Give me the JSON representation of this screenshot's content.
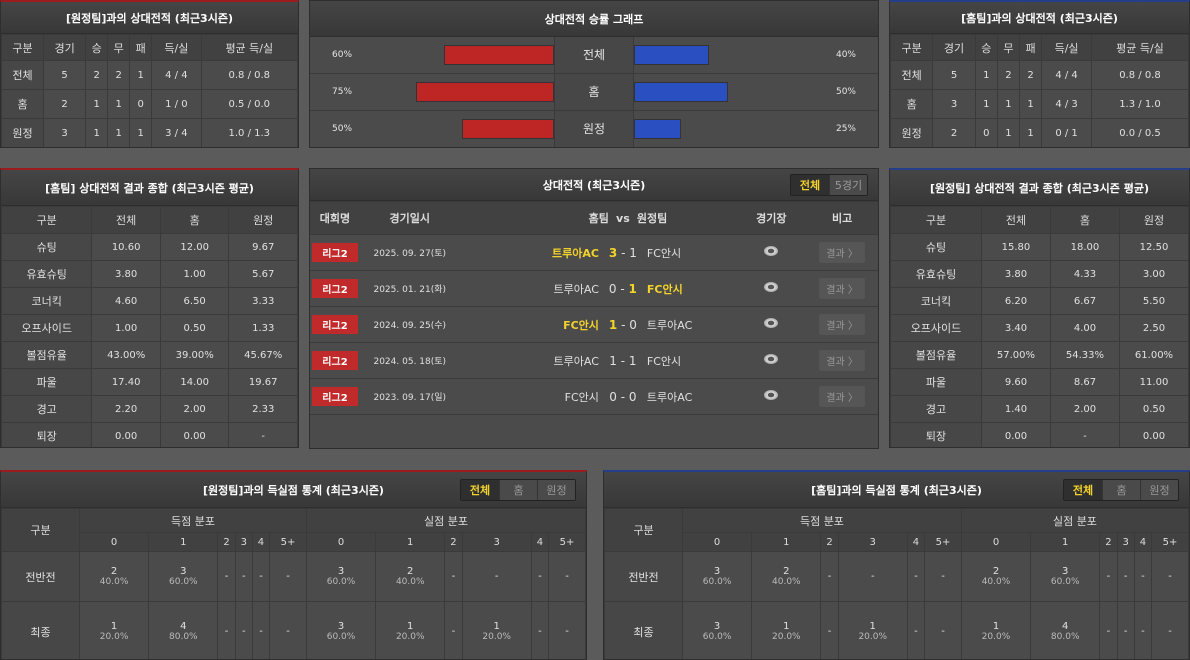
{
  "colors": {
    "home_accent": "#c02a2a",
    "away_accent": "#2a4fc0",
    "highlight": "#f3d22b"
  },
  "h2h_away": {
    "title": "[원정팀]과의 상대전적 (최근3시즌)",
    "headers": [
      "구분",
      "경기",
      "승",
      "무",
      "패",
      "득/실",
      "평균 득/실"
    ],
    "rows": [
      [
        "전체",
        "5",
        "2",
        "2",
        "1",
        "4 / 4",
        "0.8 / 0.8"
      ],
      [
        "홈",
        "2",
        "1",
        "1",
        "0",
        "1 / 0",
        "0.5 / 0.0"
      ],
      [
        "원정",
        "3",
        "1",
        "1",
        "1",
        "3 / 4",
        "1.0 / 1.3"
      ]
    ]
  },
  "h2h_home": {
    "title": "[홈팀]과의 상대전적 (최근3시즌)",
    "headers": [
      "구분",
      "경기",
      "승",
      "무",
      "패",
      "득/실",
      "평균 득/실"
    ],
    "rows": [
      [
        "전체",
        "5",
        "1",
        "2",
        "2",
        "4 / 4",
        "0.8 / 0.8"
      ],
      [
        "홈",
        "3",
        "1",
        "1",
        "1",
        "4 / 3",
        "1.3 / 1.0"
      ],
      [
        "원정",
        "2",
        "0",
        "1",
        "1",
        "0 / 1",
        "0.0 / 0.5"
      ]
    ]
  },
  "graph": {
    "title": "상대전적 승률 그래프",
    "rows": [
      {
        "label": "전체",
        "left": "60%",
        "left_value": 60,
        "right": "40%",
        "right_value": 40
      },
      {
        "label": "홈",
        "left": "75%",
        "left_value": 75,
        "right": "50%",
        "right_value": 50
      },
      {
        "label": "원정",
        "left": "50%",
        "left_value": 50,
        "right": "25%",
        "right_value": 25
      }
    ]
  },
  "summary_home": {
    "title": "[홈팀] 상대전적 결과 종합 (최근3시즌 평균)",
    "headers": [
      "구분",
      "전체",
      "홈",
      "원정"
    ],
    "rows": [
      [
        "슈팅",
        "10.60",
        "12.00",
        "9.67"
      ],
      [
        "유효슈팅",
        "3.80",
        "1.00",
        "5.67"
      ],
      [
        "코너킥",
        "4.60",
        "6.50",
        "3.33"
      ],
      [
        "오프사이드",
        "1.00",
        "0.50",
        "1.33"
      ],
      [
        "볼점유율",
        "43.00%",
        "39.00%",
        "45.67%"
      ],
      [
        "파울",
        "17.40",
        "14.00",
        "19.67"
      ],
      [
        "경고",
        "2.20",
        "2.00",
        "2.33"
      ],
      [
        "퇴장",
        "0.00",
        "0.00",
        "-"
      ]
    ]
  },
  "summary_away": {
    "title": "[원정팀] 상대전적 결과 종합 (최근3시즌 평균)",
    "headers": [
      "구분",
      "전체",
      "홈",
      "원정"
    ],
    "rows": [
      [
        "슈팅",
        "15.80",
        "18.00",
        "12.50"
      ],
      [
        "유효슈팅",
        "3.80",
        "4.33",
        "3.00"
      ],
      [
        "코너킥",
        "6.20",
        "6.67",
        "5.50"
      ],
      [
        "오프사이드",
        "3.40",
        "4.00",
        "2.50"
      ],
      [
        "볼점유율",
        "57.00%",
        "54.33%",
        "61.00%"
      ],
      [
        "파울",
        "9.60",
        "8.67",
        "11.00"
      ],
      [
        "경고",
        "1.40",
        "2.00",
        "0.50"
      ],
      [
        "퇴장",
        "0.00",
        "-",
        "0.00"
      ]
    ]
  },
  "matches": {
    "title": "상대전적 (최근3시즌)",
    "tabs": [
      "전체",
      "5경기"
    ],
    "active_tab": 0,
    "headers": {
      "league": "대회명",
      "date": "경기일시",
      "home": "홈팀",
      "vs": "vs",
      "away": "원정팀",
      "venue": "경기장",
      "note": "비고"
    },
    "result_label": "결과 〉",
    "rows": [
      {
        "league": "리그2",
        "date": "2025. 09. 27(토)",
        "home": "트루아AC",
        "hs": "3",
        "as": "1",
        "away": "FC안시",
        "winner": "home"
      },
      {
        "league": "리그2",
        "date": "2025. 01. 21(화)",
        "home": "트루아AC",
        "hs": "0",
        "as": "1",
        "away": "FC안시",
        "winner": "away"
      },
      {
        "league": "리그2",
        "date": "2024. 09. 25(수)",
        "home": "FC안시",
        "hs": "1",
        "as": "0",
        "away": "트루아AC",
        "winner": "home"
      },
      {
        "league": "리그2",
        "date": "2024. 05. 18(토)",
        "home": "트루아AC",
        "hs": "1",
        "as": "1",
        "away": "FC안시",
        "winner": "draw"
      },
      {
        "league": "리그2",
        "date": "2023. 09. 17(일)",
        "home": "FC안시",
        "hs": "0",
        "as": "0",
        "away": "트루아AC",
        "winner": "draw"
      }
    ]
  },
  "goals_away": {
    "title": "[원정팀]과의 득실점 통계 (최근3시즌)",
    "tabs": [
      "전체",
      "홈",
      "원정"
    ],
    "active_tab": 0,
    "col_label": "구분",
    "scored": "득점 분포",
    "conceded": "실점 분포",
    "buckets": [
      "0",
      "1",
      "2",
      "3",
      "4",
      "5+"
    ],
    "rows": [
      {
        "label": "전반전",
        "cells": [
          [
            "2",
            "40.0%"
          ],
          [
            "3",
            "60.0%"
          ],
          [
            "-",
            ""
          ],
          [
            "-",
            ""
          ],
          [
            "-",
            ""
          ],
          [
            "-",
            ""
          ],
          [
            "3",
            "60.0%"
          ],
          [
            "2",
            "40.0%"
          ],
          [
            "-",
            ""
          ],
          [
            "-",
            ""
          ],
          [
            "-",
            ""
          ],
          [
            "-",
            ""
          ]
        ]
      },
      {
        "label": "최종",
        "cells": [
          [
            "1",
            "20.0%"
          ],
          [
            "4",
            "80.0%"
          ],
          [
            "-",
            ""
          ],
          [
            "-",
            ""
          ],
          [
            "-",
            ""
          ],
          [
            "-",
            ""
          ],
          [
            "3",
            "60.0%"
          ],
          [
            "1",
            "20.0%"
          ],
          [
            "-",
            ""
          ],
          [
            "1",
            "20.0%"
          ],
          [
            "-",
            ""
          ],
          [
            "-",
            ""
          ]
        ]
      }
    ]
  },
  "goals_home": {
    "title": "[홈팀]과의 득실점 통계 (최근3시즌)",
    "tabs": [
      "전체",
      "홈",
      "원정"
    ],
    "active_tab": 0,
    "col_label": "구분",
    "scored": "득점 분포",
    "conceded": "실점 분포",
    "buckets": [
      "0",
      "1",
      "2",
      "3",
      "4",
      "5+"
    ],
    "rows": [
      {
        "label": "전반전",
        "cells": [
          [
            "3",
            "60.0%"
          ],
          [
            "2",
            "40.0%"
          ],
          [
            "-",
            ""
          ],
          [
            "-",
            ""
          ],
          [
            "-",
            ""
          ],
          [
            "-",
            ""
          ],
          [
            "2",
            "40.0%"
          ],
          [
            "3",
            "60.0%"
          ],
          [
            "-",
            ""
          ],
          [
            "-",
            ""
          ],
          [
            "-",
            ""
          ],
          [
            "-",
            ""
          ]
        ]
      },
      {
        "label": "최종",
        "cells": [
          [
            "3",
            "60.0%"
          ],
          [
            "1",
            "20.0%"
          ],
          [
            "-",
            ""
          ],
          [
            "1",
            "20.0%"
          ],
          [
            "-",
            ""
          ],
          [
            "-",
            ""
          ],
          [
            "1",
            "20.0%"
          ],
          [
            "4",
            "80.0%"
          ],
          [
            "-",
            ""
          ],
          [
            "-",
            ""
          ],
          [
            "-",
            ""
          ],
          [
            "-",
            ""
          ]
        ]
      }
    ]
  }
}
